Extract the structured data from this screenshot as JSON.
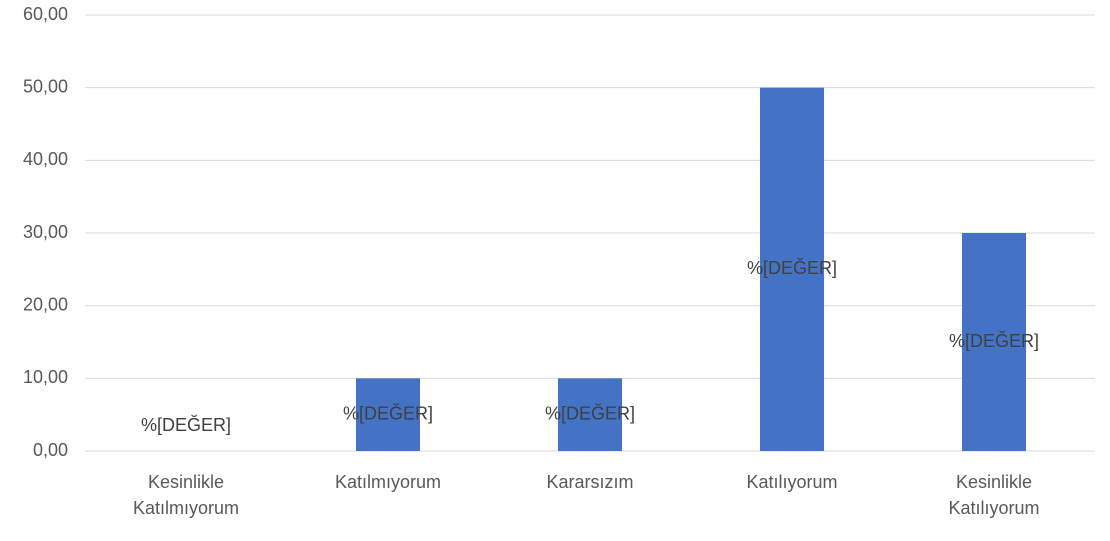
{
  "chart_data": {
    "type": "bar",
    "categories": [
      "Kesinlikle Katılmıyorum",
      "Katılmıyorum",
      "Kararsızım",
      "Katılıyorum",
      "Kesinlikle Katılıyorum"
    ],
    "values": [
      0,
      10,
      10,
      50,
      30
    ],
    "value_labels": [
      "%[DEĞER]",
      "%[DEĞER]",
      "%[DEĞER]",
      "%[DEĞER]",
      "%[DEĞER]"
    ],
    "color": "#4472c4",
    "ylim": [
      0,
      60
    ],
    "yticks": [
      {
        "value": 0,
        "label": "0,00"
      },
      {
        "value": 10,
        "label": "10,00"
      },
      {
        "value": 20,
        "label": "20,00"
      },
      {
        "value": 30,
        "label": "30,00"
      },
      {
        "value": 40,
        "label": "40,00"
      },
      {
        "value": 50,
        "label": "50,00"
      },
      {
        "value": 60,
        "label": "60,00"
      }
    ],
    "grid": true
  }
}
